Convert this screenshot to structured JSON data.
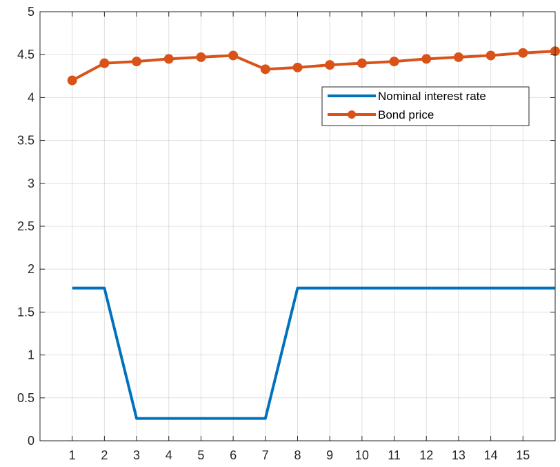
{
  "chart_data": {
    "type": "line",
    "title": "",
    "xlabel": "",
    "ylabel": "",
    "x": [
      0,
      1,
      2,
      3,
      4,
      5,
      6,
      7,
      8,
      9,
      10,
      11,
      12,
      13,
      14,
      15,
      16
    ],
    "xlim": [
      0,
      16
    ],
    "ylim": [
      0,
      5
    ],
    "x_ticks": [
      1,
      2,
      3,
      4,
      5,
      6,
      7,
      8,
      9,
      10,
      11,
      12,
      13,
      14,
      15
    ],
    "x_tick_labels": [
      "1",
      "2",
      "3",
      "4",
      "5",
      "6",
      "7",
      "8",
      "9",
      "10",
      "11",
      "12",
      "13",
      "14",
      "15"
    ],
    "y_ticks": [
      0,
      0.5,
      1,
      1.5,
      2,
      2.5,
      3,
      3.5,
      4,
      4.5,
      5
    ],
    "y_tick_labels": [
      "0",
      "0.5",
      "1",
      "1.5",
      "2",
      "2.5",
      "3",
      "3.5",
      "4",
      "4.5",
      "5"
    ],
    "grid": true,
    "legend_position": "upper-right",
    "series": [
      {
        "name": "Nominal interest rate",
        "color": "#0072BD",
        "marker": "none",
        "x": [
          1,
          2,
          3,
          4,
          5,
          6,
          7,
          8,
          9,
          10,
          11,
          12,
          13,
          14,
          15,
          16
        ],
        "values": [
          1.78,
          1.78,
          0.26,
          0.26,
          0.26,
          0.26,
          0.26,
          1.78,
          1.78,
          1.78,
          1.78,
          1.78,
          1.78,
          1.78,
          1.78,
          1.78
        ]
      },
      {
        "name": "Bond price",
        "color": "#D95319",
        "marker": "circle",
        "x": [
          1,
          2,
          3,
          4,
          5,
          6,
          7,
          8,
          9,
          10,
          11,
          12,
          13,
          14,
          15,
          16
        ],
        "values": [
          4.2,
          4.4,
          4.42,
          4.45,
          4.47,
          4.49,
          4.33,
          4.35,
          4.38,
          4.4,
          4.42,
          4.45,
          4.47,
          4.49,
          4.52,
          4.54
        ]
      }
    ]
  }
}
